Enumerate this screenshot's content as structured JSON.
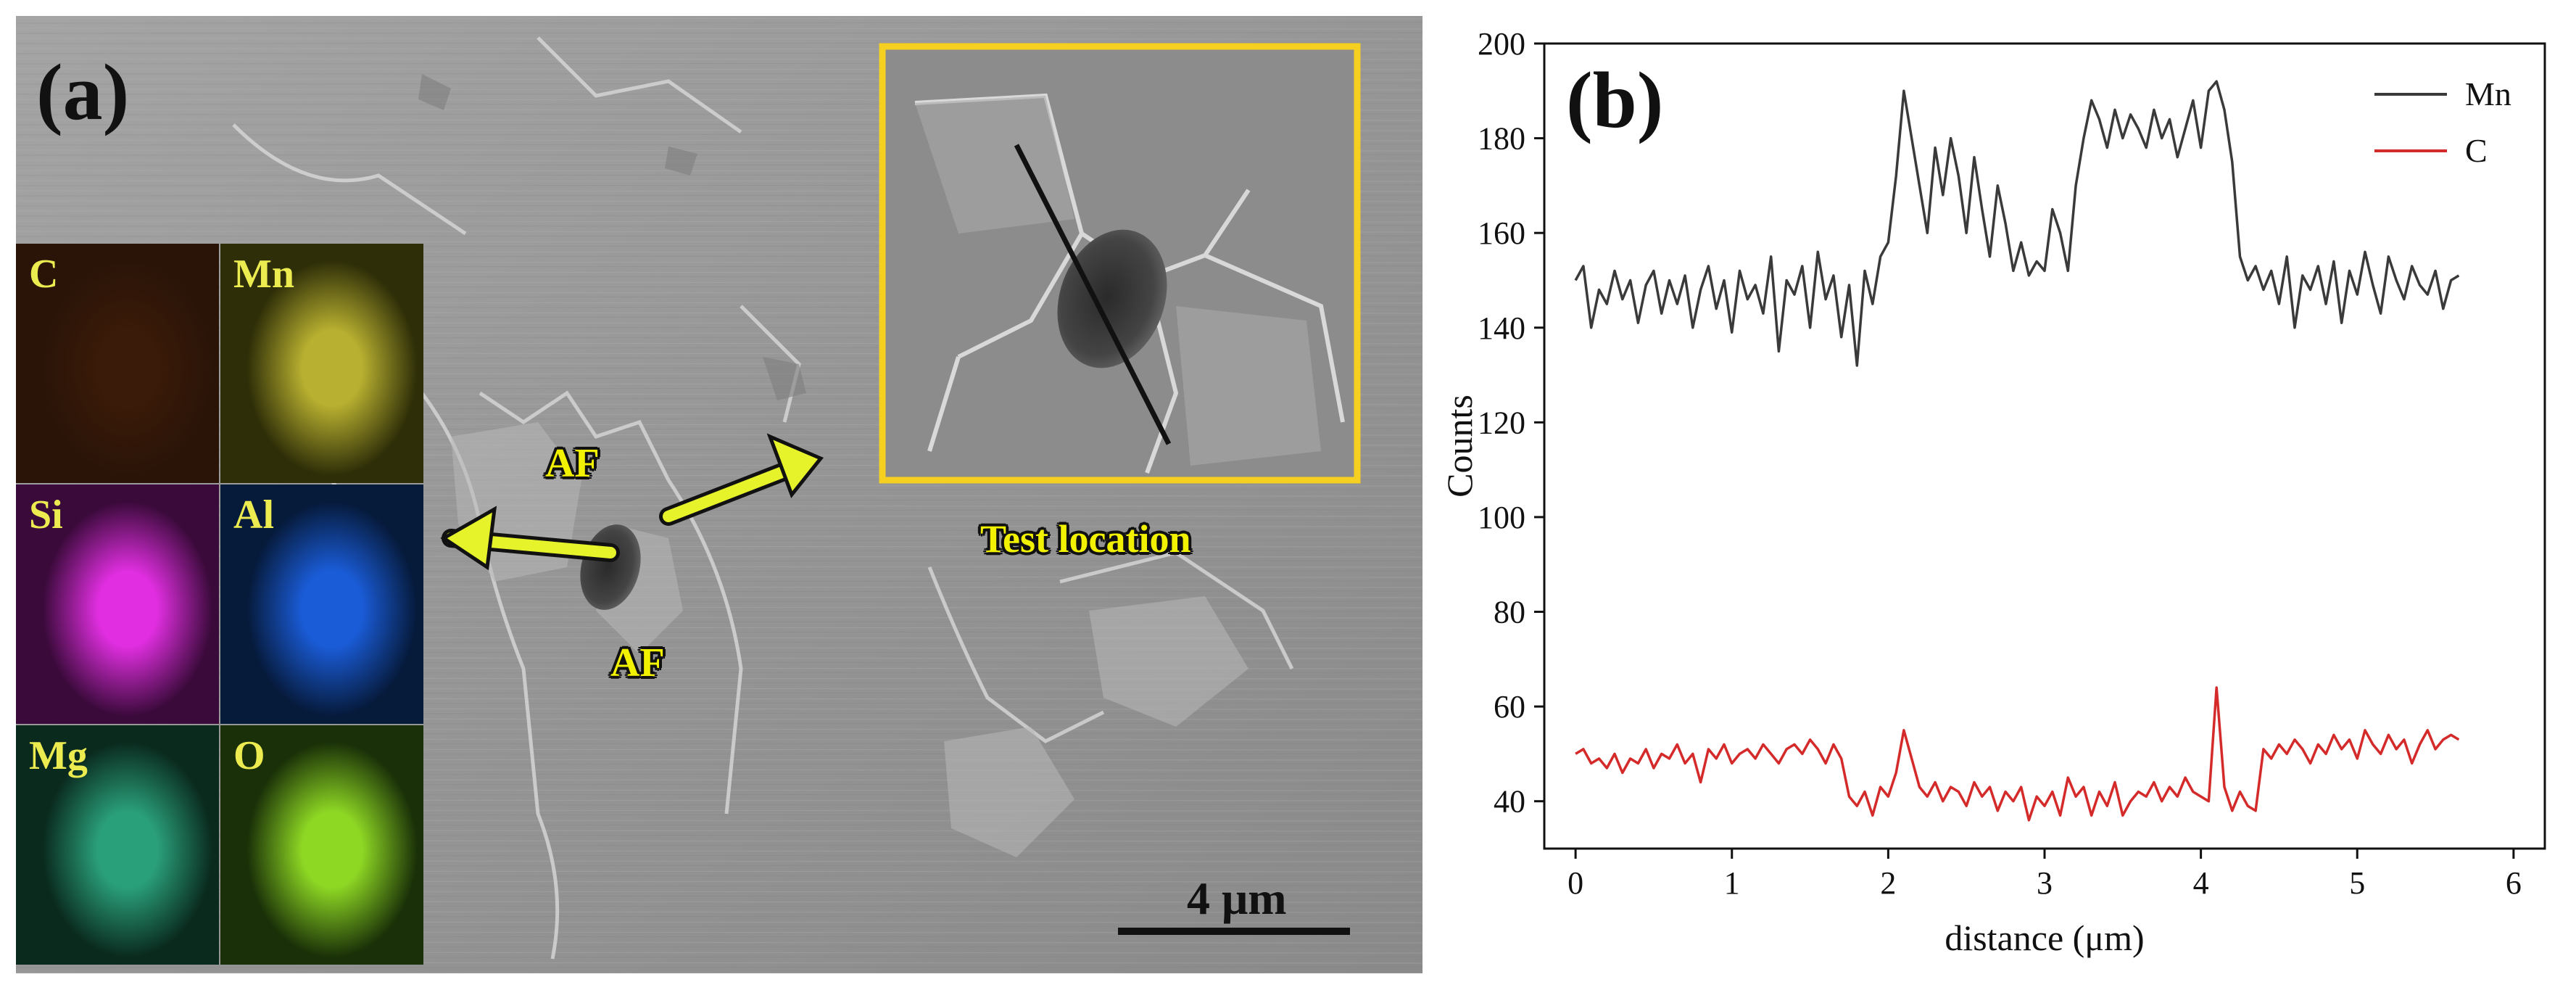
{
  "panel_a": {
    "letter": "(a)",
    "labels": {
      "test_location": "Test location",
      "af_top": "AF",
      "af_bottom": "AF"
    },
    "scale_bar": "4 μm",
    "eds_maps": [
      {
        "element": "C",
        "color": "#2a1408",
        "glow": "#3a1a08"
      },
      {
        "element": "Mn",
        "color": "#2e2e08",
        "glow": "#b8b030"
      },
      {
        "element": "Si",
        "color": "#3a0a3a",
        "glow": "#e02ee0"
      },
      {
        "element": "Al",
        "color": "#061a3a",
        "glow": "#1a5cd8"
      },
      {
        "element": "Mg",
        "color": "#0a2a1e",
        "glow": "#2aa07a"
      },
      {
        "element": "O",
        "color": "#1a3008",
        "glow": "#8ed824"
      }
    ],
    "colors": {
      "highlight": "#f5d020",
      "arrow": "#e6f22a"
    }
  },
  "panel_b": {
    "letter": "(b)",
    "chart_data": {
      "type": "line",
      "title": "",
      "xlabel": "distance (μm)",
      "ylabel": "Counts",
      "xlim": [
        -0.2,
        6.2
      ],
      "ylim": [
        30,
        200
      ],
      "xticks": [
        "0",
        "1",
        "2",
        "3",
        "4",
        "5",
        "6"
      ],
      "yticks": [
        "40",
        "60",
        "80",
        "100",
        "120",
        "140",
        "160",
        "180",
        "200"
      ],
      "legend_position": "top-right",
      "series": [
        {
          "name": "Mn",
          "color": "#3a3a3a",
          "x": [
            0.0,
            0.05,
            0.1,
            0.15,
            0.2,
            0.25,
            0.3,
            0.35,
            0.4,
            0.45,
            0.5,
            0.55,
            0.6,
            0.65,
            0.7,
            0.75,
            0.8,
            0.85,
            0.9,
            0.95,
            1.0,
            1.05,
            1.1,
            1.15,
            1.2,
            1.25,
            1.3,
            1.35,
            1.4,
            1.45,
            1.5,
            1.55,
            1.6,
            1.65,
            1.7,
            1.75,
            1.8,
            1.85,
            1.9,
            1.95,
            2.0,
            2.05,
            2.1,
            2.15,
            2.2,
            2.25,
            2.3,
            2.35,
            2.4,
            2.45,
            2.5,
            2.55,
            2.6,
            2.65,
            2.7,
            2.75,
            2.8,
            2.85,
            2.9,
            2.95,
            3.0,
            3.05,
            3.1,
            3.15,
            3.2,
            3.25,
            3.3,
            3.35,
            3.4,
            3.45,
            3.5,
            3.55,
            3.6,
            3.65,
            3.7,
            3.75,
            3.8,
            3.85,
            3.9,
            3.95,
            4.0,
            4.05,
            4.1,
            4.15,
            4.2,
            4.25,
            4.3,
            4.35,
            4.4,
            4.45,
            4.5,
            4.55,
            4.6,
            4.65,
            4.7,
            4.75,
            4.8,
            4.85,
            4.9,
            4.95,
            5.0,
            5.05,
            5.1,
            5.15,
            5.2,
            5.25,
            5.3,
            5.35,
            5.4,
            5.45,
            5.5,
            5.55,
            5.6,
            5.65
          ],
          "y": [
            150,
            153,
            140,
            148,
            145,
            152,
            146,
            150,
            141,
            149,
            152,
            143,
            150,
            145,
            151,
            140,
            148,
            153,
            144,
            150,
            139,
            152,
            146,
            149,
            143,
            155,
            135,
            150,
            147,
            153,
            140,
            156,
            146,
            151,
            138,
            149,
            132,
            152,
            145,
            155,
            158,
            172,
            190,
            180,
            170,
            160,
            178,
            168,
            180,
            172,
            160,
            176,
            165,
            155,
            170,
            162,
            152,
            158,
            151,
            154,
            152,
            165,
            160,
            152,
            170,
            180,
            188,
            184,
            178,
            186,
            180,
            185,
            182,
            178,
            186,
            180,
            184,
            176,
            182,
            188,
            178,
            190,
            192,
            186,
            175,
            155,
            150,
            153,
            148,
            152,
            145,
            155,
            140,
            151,
            148,
            153,
            145,
            154,
            141,
            152,
            147,
            156,
            149,
            143,
            155,
            150,
            146,
            153,
            149,
            147,
            152,
            144,
            150,
            151
          ]
        },
        {
          "name": "C",
          "color": "#d42a2a",
          "x": [
            0.0,
            0.05,
            0.1,
            0.15,
            0.2,
            0.25,
            0.3,
            0.35,
            0.4,
            0.45,
            0.5,
            0.55,
            0.6,
            0.65,
            0.7,
            0.75,
            0.8,
            0.85,
            0.9,
            0.95,
            1.0,
            1.05,
            1.1,
            1.15,
            1.2,
            1.25,
            1.3,
            1.35,
            1.4,
            1.45,
            1.5,
            1.55,
            1.6,
            1.65,
            1.7,
            1.75,
            1.8,
            1.85,
            1.9,
            1.95,
            2.0,
            2.05,
            2.1,
            2.15,
            2.2,
            2.25,
            2.3,
            2.35,
            2.4,
            2.45,
            2.5,
            2.55,
            2.6,
            2.65,
            2.7,
            2.75,
            2.8,
            2.85,
            2.9,
            2.95,
            3.0,
            3.05,
            3.1,
            3.15,
            3.2,
            3.25,
            3.3,
            3.35,
            3.4,
            3.45,
            3.5,
            3.55,
            3.6,
            3.65,
            3.7,
            3.75,
            3.8,
            3.85,
            3.9,
            3.95,
            4.0,
            4.05,
            4.1,
            4.15,
            4.2,
            4.25,
            4.3,
            4.35,
            4.4,
            4.45,
            4.5,
            4.55,
            4.6,
            4.65,
            4.7,
            4.75,
            4.8,
            4.85,
            4.9,
            4.95,
            5.0,
            5.05,
            5.1,
            5.15,
            5.2,
            5.25,
            5.3,
            5.35,
            5.4,
            5.45,
            5.5,
            5.55,
            5.6,
            5.65
          ],
          "y": [
            50,
            51,
            48,
            49,
            47,
            50,
            46,
            49,
            48,
            51,
            47,
            50,
            49,
            52,
            48,
            50,
            44,
            51,
            49,
            52,
            48,
            50,
            51,
            49,
            52,
            50,
            48,
            51,
            52,
            50,
            53,
            51,
            48,
            52,
            49,
            41,
            39,
            42,
            37,
            43,
            41,
            46,
            55,
            49,
            43,
            41,
            44,
            40,
            43,
            42,
            39,
            44,
            41,
            43,
            38,
            42,
            40,
            43,
            36,
            41,
            39,
            42,
            37,
            45,
            41,
            43,
            37,
            42,
            39,
            44,
            37,
            40,
            42,
            41,
            44,
            40,
            43,
            41,
            45,
            42,
            41,
            40,
            64,
            43,
            38,
            42,
            39,
            38,
            51,
            49,
            52,
            50,
            53,
            51,
            48,
            52,
            50,
            54,
            51,
            53,
            49,
            55,
            52,
            50,
            54,
            51,
            53,
            48,
            52,
            55,
            51,
            53,
            54,
            53
          ]
        }
      ]
    }
  }
}
